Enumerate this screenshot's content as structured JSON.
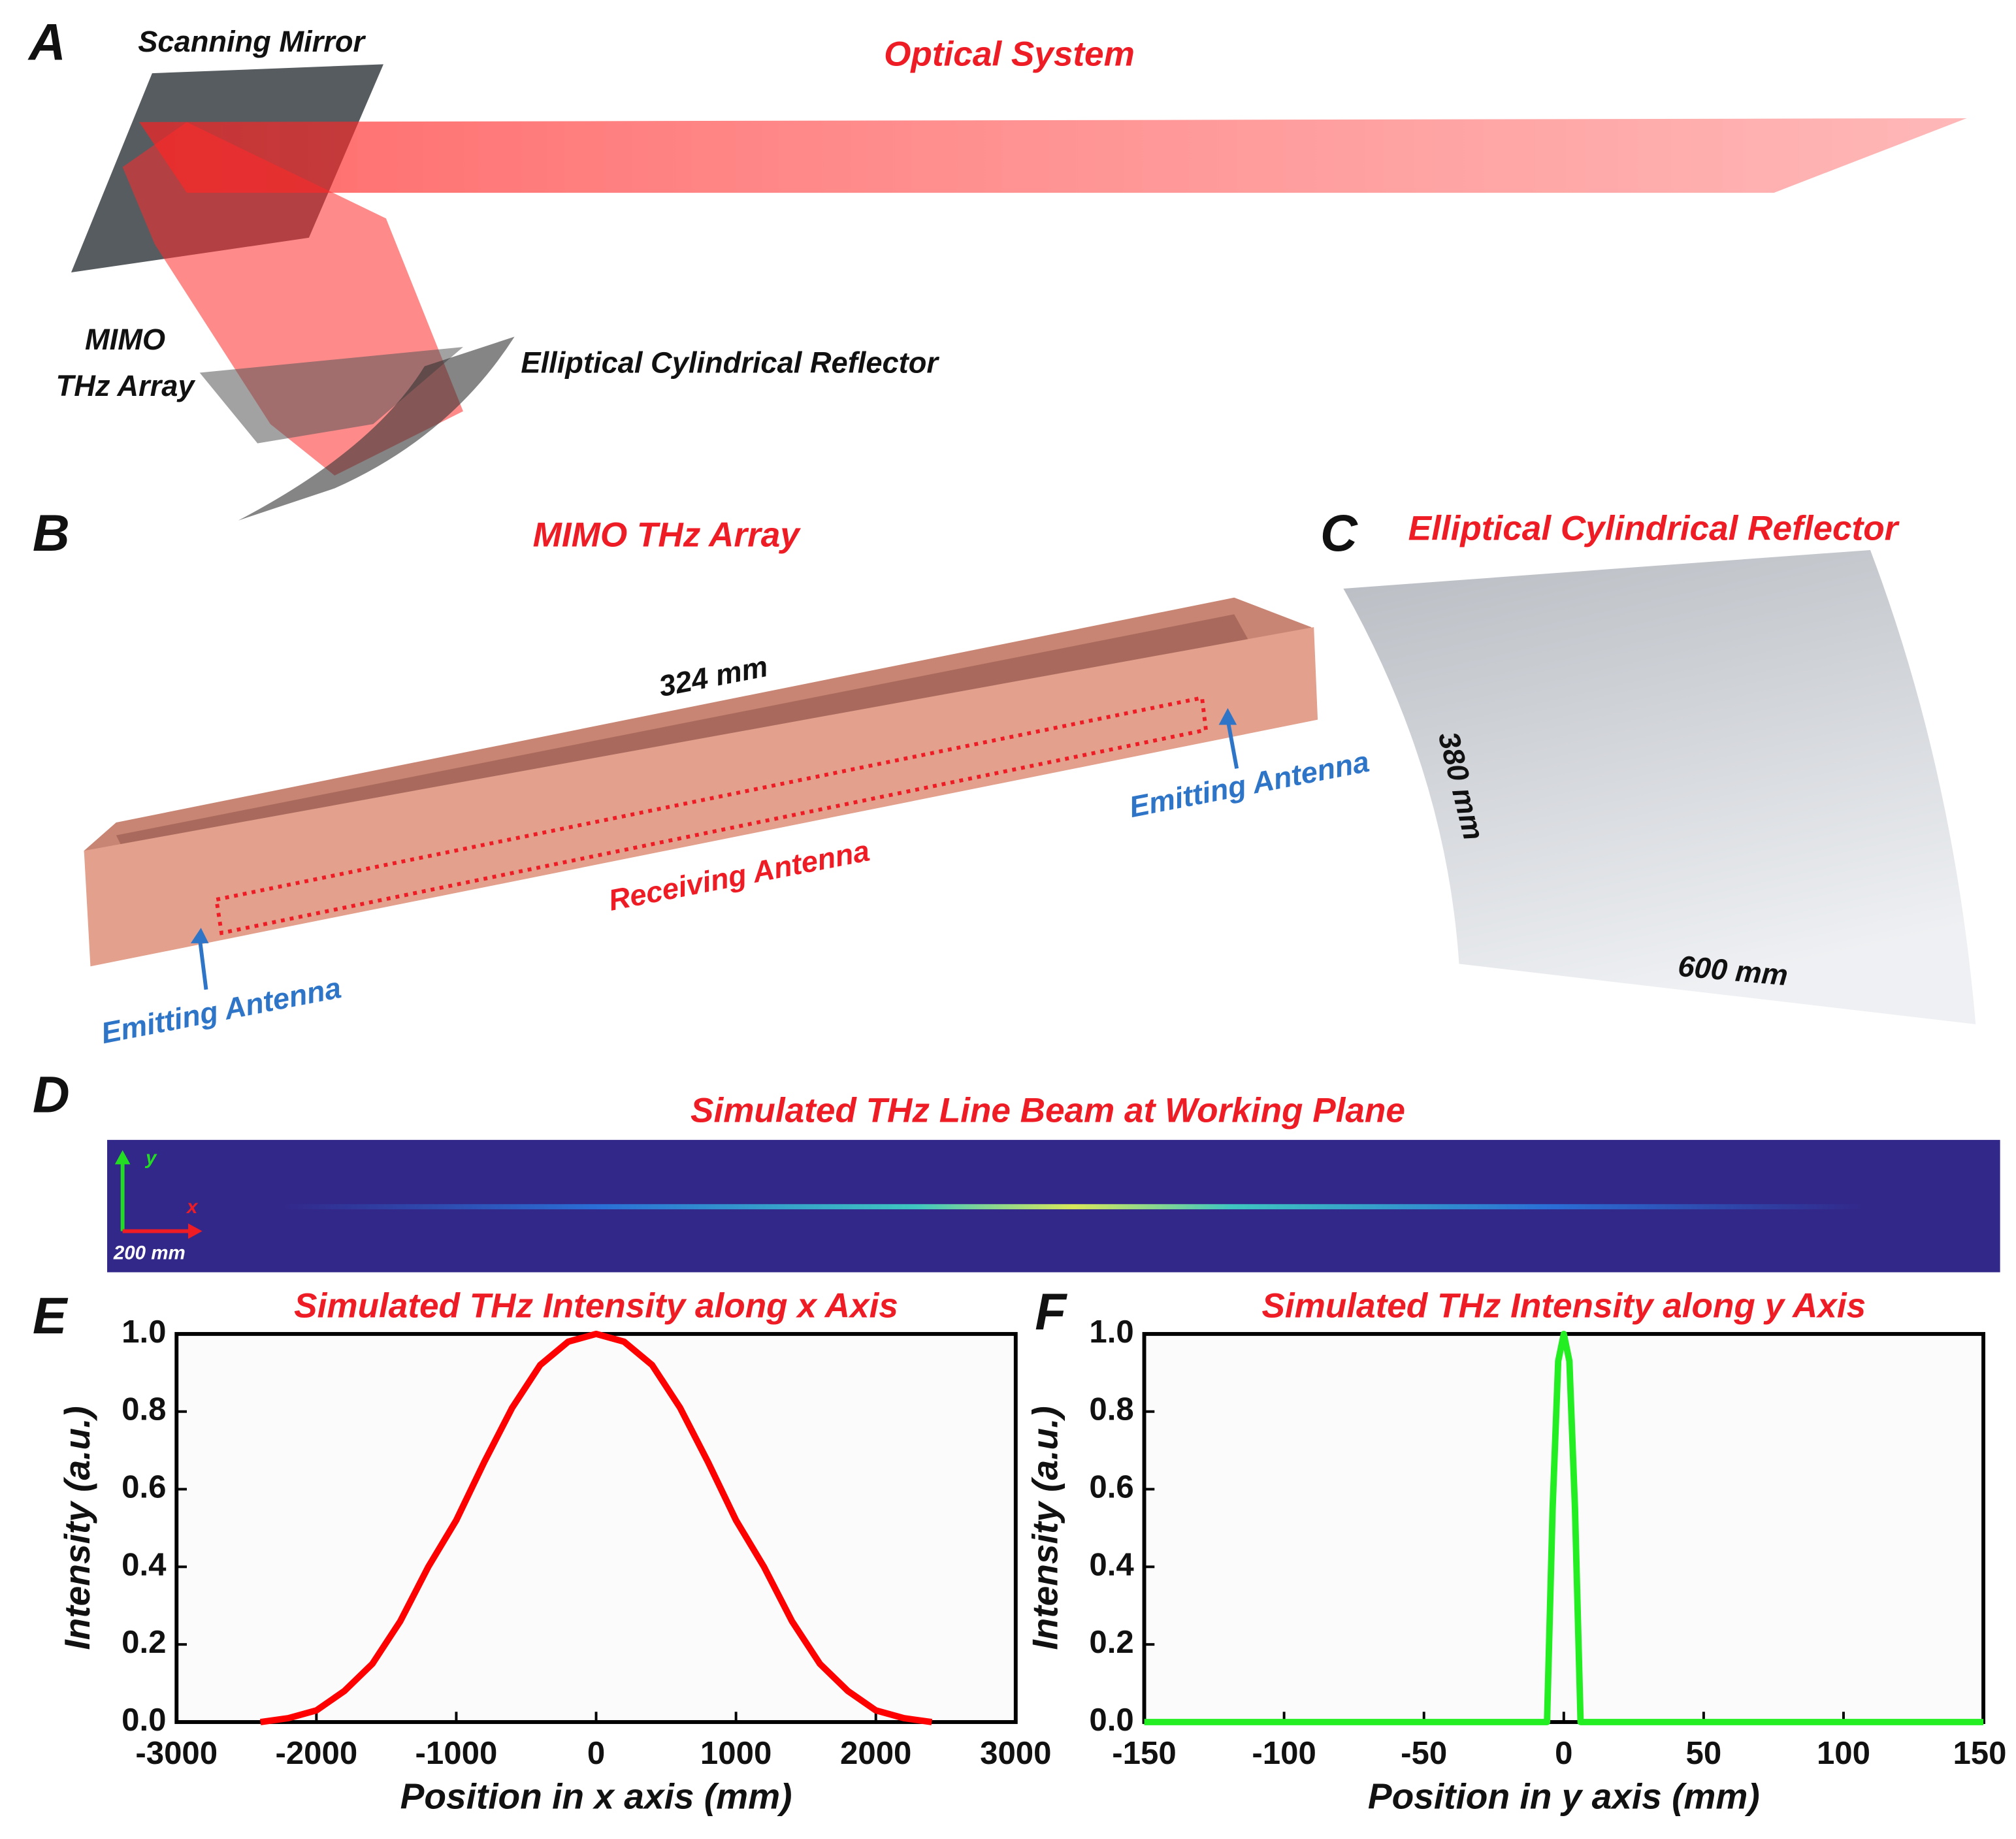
{
  "panel_a": {
    "letter": "A",
    "title": "Optical System",
    "scanning_mirror": "Scanning Mirror",
    "mimo_label": [
      "MIMO",
      "THz Array"
    ],
    "reflector_label": "Elliptical Cylindrical Reflector"
  },
  "panel_b": {
    "letter": "B",
    "title": "MIMO THz Array",
    "length": "324 mm",
    "receiving": "Receiving Antenna",
    "emitting_left": "Emitting Antenna",
    "emitting_right": "Emitting Antenna"
  },
  "panel_c": {
    "letter": "C",
    "title": "Elliptical Cylindrical Reflector",
    "height": "380 mm",
    "width": "600 mm"
  },
  "panel_d": {
    "letter": "D",
    "title": "Simulated THz Line Beam at Working Plane",
    "axis_y": "y",
    "axis_x": "x",
    "scale": "200 mm"
  },
  "panel_e": {
    "letter": "E"
  },
  "panel_f": {
    "letter": "F"
  },
  "chart_data": [
    {
      "type": "line",
      "title": "Simulated THz Intensity along x Axis",
      "x_label": "Position in x axis (mm)",
      "y_label": "Intensity (a.u.)",
      "x": [
        -2400,
        -2200,
        -2000,
        -1800,
        -1600,
        -1400,
        -1200,
        -1000,
        -800,
        -600,
        -400,
        -200,
        0,
        200,
        400,
        600,
        800,
        1000,
        1200,
        1400,
        1600,
        1800,
        2000,
        2200,
        2400
      ],
      "values": [
        0,
        0.01,
        0.03,
        0.08,
        0.15,
        0.26,
        0.4,
        0.52,
        0.67,
        0.81,
        0.92,
        0.98,
        1.0,
        0.98,
        0.92,
        0.81,
        0.67,
        0.52,
        0.4,
        0.26,
        0.15,
        0.08,
        0.03,
        0.01,
        0
      ],
      "color": "#ff0000",
      "xlim": [
        -3000,
        3000
      ],
      "xticks": [
        -3000,
        -2000,
        -1000,
        0,
        1000,
        2000,
        3000
      ],
      "ylim": [
        0,
        1
      ],
      "yticks": [
        {
          "value": 0,
          "label": "0.0"
        },
        0.2,
        0.4,
        0.6,
        0.8,
        {
          "value": 1,
          "label": "1.0"
        }
      ]
    },
    {
      "type": "line",
      "title": "Simulated THz Intensity along y Axis",
      "x_label": "Position in y axis (mm)",
      "y_label": "Intensity (a.u.)",
      "x": [
        -150,
        -6,
        -4,
        -2,
        0,
        2,
        4,
        6,
        150
      ],
      "values": [
        0,
        0,
        0.55,
        0.93,
        1.0,
        0.93,
        0.55,
        0,
        0
      ],
      "color": "#22ee22",
      "xlim": [
        -150,
        150
      ],
      "xticks": [
        -150,
        -100,
        -50,
        0,
        50,
        100,
        150
      ],
      "ylim": [
        0,
        1
      ],
      "yticks": [
        {
          "value": 0,
          "label": "0.0"
        },
        0.2,
        0.4,
        0.6,
        0.8,
        {
          "value": 1,
          "label": "1.0"
        }
      ]
    }
  ]
}
